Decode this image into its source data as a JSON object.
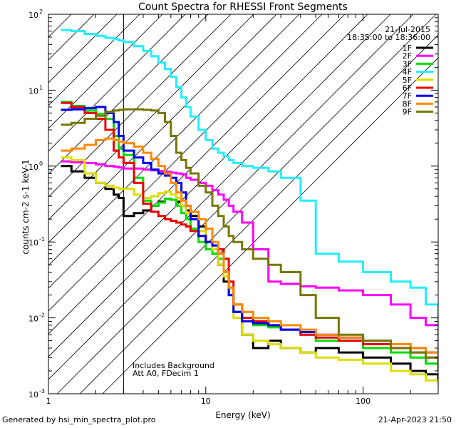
{
  "chart_data": {
    "type": "line",
    "title": "Count Spectra for RHESSI Front Segments",
    "xlabel": "Energy (keV)",
    "ylabel": "counts cm-2 s-1 keV-1",
    "xscale": "log",
    "yscale": "log",
    "xlim": [
      1,
      300
    ],
    "ylim": [
      0.001,
      100
    ],
    "xticks": [
      10,
      100
    ],
    "xtick_labels": [
      "10",
      "100"
    ],
    "yticks": [
      0.001,
      0.01,
      0.1,
      1,
      10,
      100
    ],
    "yticks_base": [
      "10",
      "10",
      "10",
      "10",
      "10",
      "10"
    ],
    "yticks_exp": [
      "-3",
      "-2",
      "-1",
      "0",
      "1",
      "2"
    ],
    "attenuator_shade_max_energy": 3,
    "date": "21-Jul-2015",
    "time_range": "18:35:00 to 18:36:00",
    "annotations": [
      "Includes Background",
      "Att A0, FDecim 1"
    ],
    "legend_position": "top-right",
    "series": [
      {
        "name": "1F",
        "color": "#000000",
        "energy": [
          1.2,
          1.4,
          1.7,
          2.0,
          2.3,
          2.6,
          2.8,
          3.0,
          3.5,
          4.0,
          4.5,
          5.0,
          5.5,
          6.0,
          6.5,
          7.0,
          7.5,
          8.0,
          9.0,
          10,
          11,
          12,
          13,
          14,
          15,
          17,
          20,
          25,
          30,
          40,
          50,
          70,
          100,
          150,
          200,
          250,
          300
        ],
        "value": [
          1.0,
          0.85,
          0.7,
          0.6,
          0.5,
          0.42,
          0.38,
          0.22,
          0.24,
          0.26,
          0.3,
          0.34,
          0.37,
          0.36,
          0.34,
          0.3,
          0.26,
          0.22,
          0.16,
          0.1,
          0.07,
          0.05,
          0.03,
          0.02,
          0.012,
          0.006,
          0.004,
          0.005,
          0.004,
          0.0035,
          0.004,
          0.0035,
          0.003,
          0.0025,
          0.002,
          0.0018,
          0.0015
        ]
      },
      {
        "name": "2F",
        "color": "#ff00ff",
        "energy": [
          1.2,
          1.4,
          1.7,
          2.0,
          2.3,
          2.6,
          2.8,
          3.0,
          3.5,
          4.0,
          4.5,
          5.0,
          5.5,
          6.0,
          6.5,
          7.0,
          7.5,
          8.0,
          9.0,
          10,
          11,
          12,
          13,
          14,
          15,
          17,
          20,
          25,
          30,
          40,
          50,
          70,
          100,
          150,
          200,
          250,
          300
        ],
        "value": [
          1.15,
          1.12,
          1.1,
          1.05,
          1.0,
          0.98,
          0.96,
          0.93,
          0.93,
          0.9,
          0.88,
          0.86,
          0.84,
          0.82,
          0.8,
          0.78,
          0.7,
          0.66,
          0.6,
          0.55,
          0.48,
          0.42,
          0.36,
          0.3,
          0.25,
          0.18,
          0.08,
          0.03,
          0.028,
          0.026,
          0.025,
          0.023,
          0.02,
          0.015,
          0.01,
          0.008,
          0.007
        ]
      },
      {
        "name": "3F",
        "color": "#00dd00",
        "energy": [
          1.2,
          1.4,
          1.7,
          2.0,
          2.3,
          2.6,
          2.8,
          3.0,
          3.5,
          4.0,
          4.5,
          5.0,
          5.5,
          6.0,
          6.5,
          7.0,
          7.5,
          8.0,
          9.0,
          10,
          11,
          12,
          13,
          14,
          15,
          17,
          20,
          25,
          30,
          40,
          50,
          70,
          100,
          150,
          200,
          250,
          300
        ],
        "value": [
          7.0,
          6.2,
          5.4,
          4.9,
          4.2,
          2.5,
          1.7,
          1.4,
          0.7,
          0.35,
          0.3,
          0.33,
          0.37,
          0.36,
          0.3,
          0.24,
          0.2,
          0.15,
          0.1,
          0.08,
          0.07,
          0.06,
          0.04,
          0.025,
          0.015,
          0.01,
          0.008,
          0.0075,
          0.007,
          0.006,
          0.005,
          0.005,
          0.004,
          0.0035,
          0.003,
          0.0025,
          0.002
        ]
      },
      {
        "name": "4F",
        "color": "#22eeff",
        "energy": [
          1.2,
          1.4,
          1.7,
          2.0,
          2.3,
          2.6,
          2.8,
          3.0,
          3.5,
          4.0,
          4.5,
          5.0,
          5.5,
          6.0,
          6.5,
          7.0,
          7.5,
          8.0,
          9.0,
          10,
          11,
          12,
          13,
          14,
          15,
          17,
          20,
          25,
          30,
          40,
          50,
          70,
          100,
          150,
          200,
          250,
          300
        ],
        "value": [
          62,
          60,
          55,
          52,
          49,
          47,
          45,
          43,
          38,
          33,
          28,
          23,
          19,
          15,
          11,
          8,
          6,
          4.5,
          3.0,
          2.2,
          1.7,
          1.5,
          1.35,
          1.2,
          1.1,
          1.0,
          0.95,
          0.85,
          0.7,
          0.35,
          0.07,
          0.055,
          0.04,
          0.03,
          0.025,
          0.015,
          0.003
        ]
      },
      {
        "name": "5F",
        "color": "#dddd00",
        "energy": [
          1.2,
          1.4,
          1.7,
          2.0,
          2.3,
          2.6,
          2.8,
          3.0,
          3.5,
          4.0,
          4.5,
          5.0,
          5.5,
          6.0,
          6.5,
          7.0,
          7.5,
          8.0,
          9.0,
          10,
          11,
          12,
          13,
          14,
          15,
          17,
          20,
          25,
          30,
          40,
          50,
          70,
          100,
          150,
          200,
          250,
          300
        ],
        "value": [
          1.3,
          1.2,
          0.8,
          0.6,
          0.55,
          0.52,
          0.5,
          0.5,
          0.42,
          0.38,
          0.4,
          0.44,
          0.46,
          0.42,
          0.38,
          0.3,
          0.24,
          0.2,
          0.14,
          0.1,
          0.08,
          0.05,
          0.035,
          0.02,
          0.01,
          0.006,
          0.005,
          0.0045,
          0.004,
          0.0035,
          0.003,
          0.0028,
          0.0025,
          0.002,
          0.0018,
          0.0015,
          0.0013
        ]
      },
      {
        "name": "6F",
        "color": "#ee0000",
        "energy": [
          1.2,
          1.4,
          1.7,
          2.0,
          2.3,
          2.6,
          2.8,
          3.0,
          3.5,
          4.0,
          4.5,
          5.0,
          5.5,
          6.0,
          6.5,
          7.0,
          7.5,
          8.0,
          9.0,
          10,
          11,
          12,
          13,
          14,
          15,
          17,
          20,
          25,
          30,
          40,
          50,
          70,
          100,
          150,
          200,
          250,
          300
        ],
        "value": [
          6.8,
          6.0,
          5.0,
          4.2,
          3.0,
          1.6,
          1.3,
          1.1,
          0.6,
          0.32,
          0.25,
          0.22,
          0.2,
          0.19,
          0.18,
          0.17,
          0.16,
          0.14,
          0.12,
          0.1,
          0.09,
          0.08,
          0.06,
          0.03,
          0.015,
          0.01,
          0.009,
          0.008,
          0.007,
          0.006,
          0.0055,
          0.005,
          0.0045,
          0.004,
          0.0035,
          0.003,
          0.0025
        ]
      },
      {
        "name": "7F",
        "color": "#0000ee",
        "energy": [
          1.2,
          1.4,
          1.7,
          2.0,
          2.3,
          2.6,
          2.8,
          3.0,
          3.5,
          4.0,
          4.5,
          5.0,
          5.5,
          6.0,
          6.5,
          7.0,
          7.5,
          8.0,
          9.0,
          10,
          11,
          12,
          13,
          14,
          15,
          17,
          20,
          25,
          30,
          40,
          50,
          70,
          100,
          150,
          200,
          250,
          300
        ],
        "value": [
          5.5,
          5.6,
          5.8,
          6.0,
          5.0,
          3.8,
          2.5,
          1.6,
          1.3,
          1.1,
          0.9,
          0.8,
          0.75,
          0.7,
          0.6,
          0.45,
          0.3,
          0.2,
          0.12,
          0.1,
          0.09,
          0.07,
          0.04,
          0.02,
          0.012,
          0.009,
          0.0085,
          0.008,
          0.007,
          0.0065,
          0.006,
          0.0055,
          0.005,
          0.0045,
          0.004,
          0.0035,
          0.003
        ]
      },
      {
        "name": "8F",
        "color": "#ff8800",
        "energy": [
          1.2,
          1.4,
          1.7,
          2.0,
          2.3,
          2.6,
          2.8,
          3.0,
          3.5,
          4.0,
          4.5,
          5.0,
          5.5,
          6.0,
          6.5,
          7.0,
          7.5,
          8.0,
          9.0,
          10,
          11,
          12,
          13,
          14,
          15,
          17,
          20,
          25,
          30,
          40,
          50,
          70,
          100,
          150,
          200,
          250,
          300
        ],
        "value": [
          1.6,
          1.7,
          1.9,
          2.2,
          2.3,
          2.2,
          2.1,
          2.0,
          1.8,
          1.5,
          1.25,
          1.0,
          0.8,
          0.6,
          0.45,
          0.35,
          0.3,
          0.25,
          0.2,
          0.15,
          0.1,
          0.07,
          0.04,
          0.025,
          0.015,
          0.012,
          0.01,
          0.009,
          0.008,
          0.007,
          0.006,
          0.0055,
          0.005,
          0.0045,
          0.004,
          0.0035,
          0.003
        ]
      },
      {
        "name": "9F",
        "color": "#777700",
        "energy": [
          1.2,
          1.4,
          1.7,
          2.0,
          2.3,
          2.6,
          2.8,
          3.0,
          3.5,
          4.0,
          4.5,
          5.0,
          5.5,
          6.0,
          6.5,
          7.0,
          7.5,
          8.0,
          9.0,
          10,
          11,
          12,
          13,
          14,
          15,
          17,
          20,
          25,
          30,
          40,
          50,
          70,
          100,
          150,
          200,
          250,
          300
        ],
        "value": [
          3.5,
          3.7,
          4.2,
          4.6,
          5.2,
          5.4,
          5.5,
          5.6,
          5.6,
          5.5,
          5.4,
          5.0,
          3.8,
          2.5,
          1.5,
          1.2,
          0.95,
          0.8,
          0.55,
          0.45,
          0.3,
          0.22,
          0.16,
          0.12,
          0.1,
          0.08,
          0.06,
          0.05,
          0.04,
          0.02,
          0.01,
          0.006,
          0.005,
          0.004,
          0.0035,
          0.003,
          0.002
        ]
      }
    ]
  },
  "footer": {
    "generated_by": "Generated by hsi_min_spectra_plot.pro",
    "timestamp": "21-Apr-2023 21:50"
  }
}
